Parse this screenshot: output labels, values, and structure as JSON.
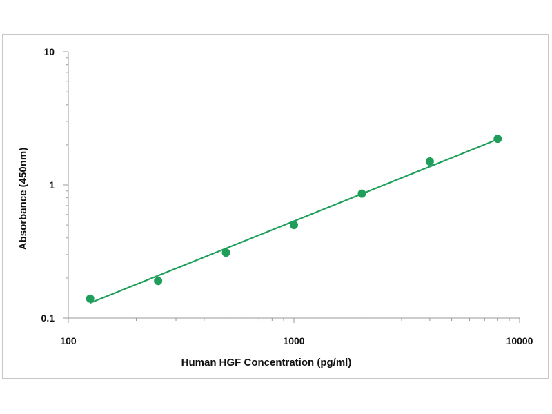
{
  "chart_data": {
    "type": "scatter",
    "title": "",
    "xlabel": "Human HGF Concentration (pg/ml)",
    "ylabel": "Absorbance (450nm)",
    "x_scale": "log",
    "y_scale": "log",
    "xlim": [
      100,
      10000
    ],
    "ylim": [
      0.1,
      10
    ],
    "x_ticks": [
      {
        "value": 100,
        "label": "100"
      },
      {
        "value": 1000,
        "label": "1000"
      },
      {
        "value": 10000,
        "label": "10000"
      }
    ],
    "y_ticks": [
      {
        "value": 0.1,
        "label": "0.1"
      },
      {
        "value": 1,
        "label": "1"
      },
      {
        "value": 10,
        "label": "10"
      }
    ],
    "grid": false,
    "legend": "none",
    "color": "#1e9e5a",
    "points": [
      {
        "x": 125,
        "y": 0.14
      },
      {
        "x": 250,
        "y": 0.19
      },
      {
        "x": 500,
        "y": 0.31
      },
      {
        "x": 1000,
        "y": 0.5
      },
      {
        "x": 2000,
        "y": 0.86
      },
      {
        "x": 4000,
        "y": 1.5
      },
      {
        "x": 8000,
        "y": 2.22
      }
    ],
    "trendline": {
      "x": [
        125,
        8000
      ],
      "y": [
        0.13,
        2.2
      ]
    }
  }
}
